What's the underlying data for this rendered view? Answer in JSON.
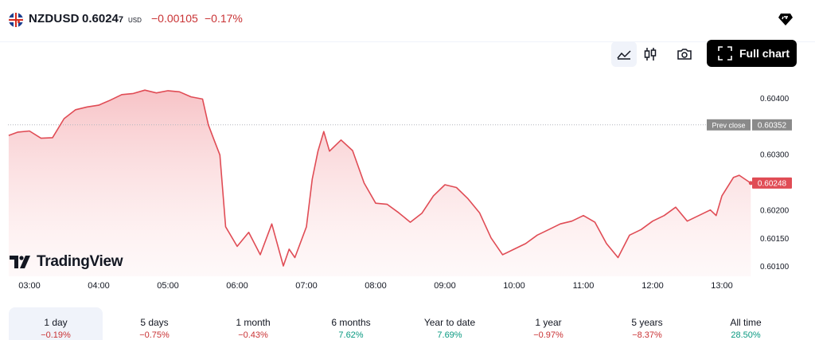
{
  "header": {
    "symbol": "NZDUSD",
    "price_main": "0.6024",
    "price_small": "7",
    "currency": "USD",
    "change": "−0.00105",
    "change_pct": "−0.17%",
    "icons": {
      "flag": "nzd-usd-flag-icon",
      "gem": "diamond-icon"
    }
  },
  "toolbar": {
    "full_chart_label": "Full chart",
    "icons": [
      "area-chart-icon",
      "candlestick-icon",
      "camera-icon",
      "fullscreen-icon"
    ]
  },
  "colors": {
    "line": "#e04c55",
    "fill": "#f9c7ca",
    "negative": "#c93234",
    "positive": "#089981",
    "current_badge": "#e04c55",
    "prev_close_badge": "#8a8a8a"
  },
  "chart_data": {
    "type": "area",
    "x_ticks": [
      "03:00",
      "04:00",
      "05:00",
      "06:00",
      "07:00",
      "08:00",
      "09:00",
      "10:00",
      "11:00",
      "12:00",
      "13:00"
    ],
    "y_ticks": [
      "0.60400",
      "0.60300",
      "0.60200",
      "0.60150",
      "0.60100"
    ],
    "ylim": [
      0.6009,
      0.6043
    ],
    "prev_close_label": "Prev close",
    "prev_close_value": "0.60352",
    "current_value": "0.60248",
    "grid": false,
    "time": [
      "02:42",
      "02:50",
      "03:00",
      "03:10",
      "03:20",
      "03:30",
      "03:40",
      "03:50",
      "04:00",
      "04:10",
      "04:20",
      "04:30",
      "04:40",
      "04:50",
      "05:00",
      "05:10",
      "05:20",
      "05:30",
      "05:35",
      "05:40",
      "05:45",
      "05:50",
      "06:00",
      "06:10",
      "06:20",
      "06:30",
      "06:40",
      "06:45",
      "06:50",
      "07:00",
      "07:05",
      "07:10",
      "07:15",
      "07:20",
      "07:30",
      "07:40",
      "07:50",
      "08:00",
      "08:10",
      "08:20",
      "08:30",
      "08:40",
      "08:50",
      "09:00",
      "09:10",
      "09:20",
      "09:30",
      "09:40",
      "09:50",
      "10:00",
      "10:10",
      "10:20",
      "10:30",
      "10:40",
      "10:50",
      "11:00",
      "11:10",
      "11:20",
      "11:30",
      "11:40",
      "11:50",
      "12:00",
      "12:10",
      "12:20",
      "12:30",
      "12:40",
      "12:50",
      "12:55",
      "13:00",
      "13:10",
      "13:15",
      "13:20",
      "13:25"
    ],
    "values": [
      0.60333,
      0.60339,
      0.60341,
      0.60328,
      0.60329,
      0.60363,
      0.60379,
      0.60384,
      0.60387,
      0.60396,
      0.60406,
      0.60408,
      0.60414,
      0.60409,
      0.60413,
      0.60411,
      0.60402,
      0.60398,
      0.60352,
      0.60325,
      0.60298,
      0.6017,
      0.60135,
      0.6016,
      0.6012,
      0.60175,
      0.601,
      0.6013,
      0.60115,
      0.6017,
      0.60255,
      0.60305,
      0.6034,
      0.60305,
      0.60325,
      0.60306,
      0.60248,
      0.60212,
      0.6021,
      0.60195,
      0.60178,
      0.60194,
      0.60225,
      0.60245,
      0.6024,
      0.6022,
      0.60195,
      0.6015,
      0.6012,
      0.6013,
      0.6014,
      0.60155,
      0.60165,
      0.60175,
      0.6018,
      0.6019,
      0.60178,
      0.6014,
      0.60115,
      0.60155,
      0.60165,
      0.6018,
      0.6019,
      0.60205,
      0.6018,
      0.6019,
      0.602,
      0.6019,
      0.60225,
      0.60258,
      0.60262,
      0.60255,
      0.60248
    ]
  },
  "ranges": [
    {
      "label": "1 day",
      "change": "−0.19%",
      "dir": "neg"
    },
    {
      "label": "5 days",
      "change": "−0.75%",
      "dir": "neg"
    },
    {
      "label": "1 month",
      "change": "−0.43%",
      "dir": "neg"
    },
    {
      "label": "6 months",
      "change": "7.62%",
      "dir": "pos"
    },
    {
      "label": "Year to date",
      "change": "7.69%",
      "dir": "pos"
    },
    {
      "label": "1 year",
      "change": "−0.97%",
      "dir": "neg"
    },
    {
      "label": "5 years",
      "change": "−8.37%",
      "dir": "neg"
    },
    {
      "label": "All time",
      "change": "28.50%",
      "dir": "pos"
    }
  ],
  "branding": {
    "logo_text": "TradingView",
    "logo_icon": "tradingview-logo-icon"
  }
}
